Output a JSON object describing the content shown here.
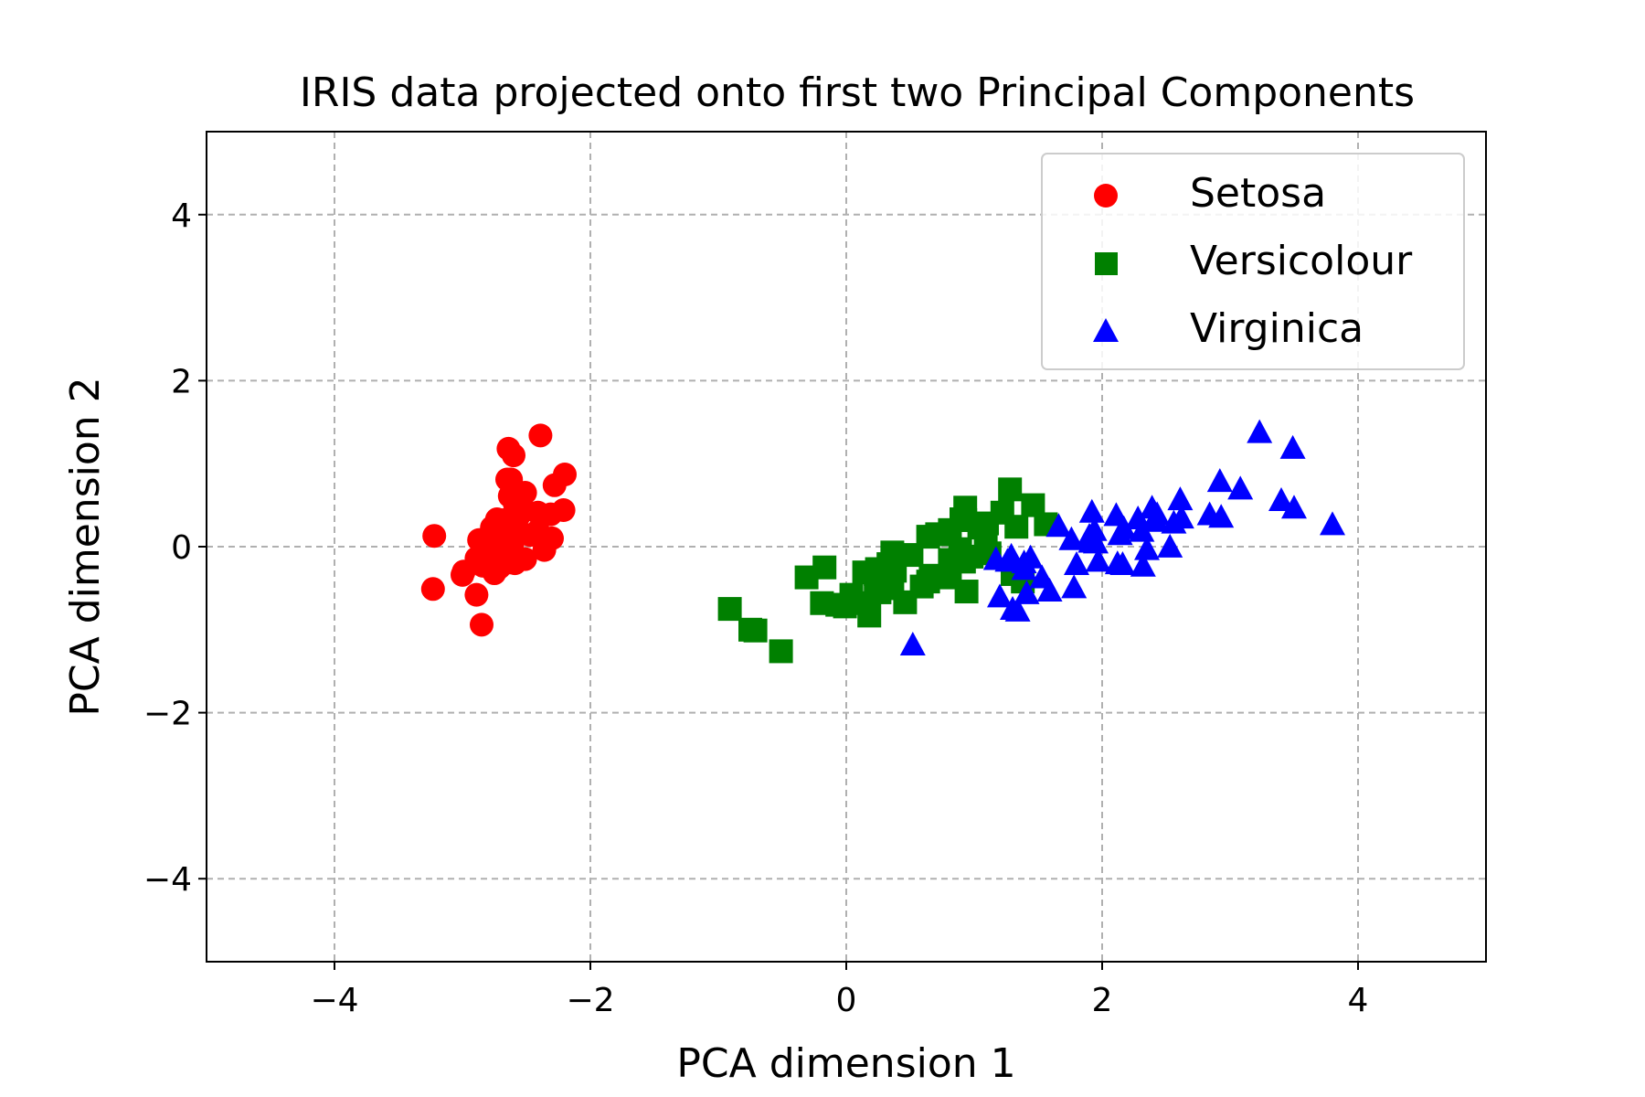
{
  "chart_data": {
    "type": "scatter",
    "title": "IRIS data projected onto first two Principal Components",
    "xlabel": "PCA dimension 1",
    "ylabel": "PCA dimension 2",
    "xlim": [
      -5,
      5
    ],
    "ylim": [
      -5,
      5
    ],
    "xticks": [
      -4,
      -2,
      0,
      2,
      4
    ],
    "yticks": [
      -4,
      -2,
      0,
      2,
      4
    ],
    "xtick_labels": [
      "−4",
      "−2",
      "0",
      "2",
      "4"
    ],
    "ytick_labels": [
      "−4",
      "−2",
      "0",
      "2",
      "4"
    ],
    "grid": true,
    "grid_style": "dashed",
    "legend_position": "top-right",
    "series": [
      {
        "name": "Setosa",
        "color": "#ff0000",
        "marker": "circle",
        "points": [
          [
            -2.68,
            0.32
          ],
          [
            -2.71,
            -0.18
          ],
          [
            -2.89,
            -0.14
          ],
          [
            -2.75,
            -0.32
          ],
          [
            -2.73,
            0.33
          ],
          [
            -2.28,
            0.74
          ],
          [
            -2.82,
            -0.09
          ],
          [
            -2.63,
            0.16
          ],
          [
            -2.89,
            -0.58
          ],
          [
            -2.67,
            -0.11
          ],
          [
            -2.51,
            0.65
          ],
          [
            -2.61,
            0.02
          ],
          [
            -2.79,
            -0.24
          ],
          [
            -3.23,
            -0.51
          ],
          [
            -2.64,
            1.18
          ],
          [
            -2.39,
            1.34
          ],
          [
            -2.62,
            0.81
          ],
          [
            -2.65,
            0.31
          ],
          [
            -2.2,
            0.87
          ],
          [
            -2.59,
            0.51
          ],
          [
            -2.31,
            0.39
          ],
          [
            -2.54,
            0.43
          ],
          [
            -3.22,
            0.13
          ],
          [
            -2.3,
            0.1
          ],
          [
            -2.36,
            -0.04
          ],
          [
            -2.51,
            -0.15
          ],
          [
            -2.47,
            0.14
          ],
          [
            -2.56,
            0.37
          ],
          [
            -2.64,
            0.31
          ],
          [
            -2.63,
            -0.19
          ],
          [
            -2.59,
            -0.2
          ],
          [
            -2.41,
            0.41
          ],
          [
            -2.65,
            0.81
          ],
          [
            -2.6,
            1.1
          ],
          [
            -2.67,
            -0.11
          ],
          [
            -2.87,
            0.08
          ],
          [
            -2.63,
            0.61
          ],
          [
            -2.8,
            0.06
          ],
          [
            -2.99,
            -0.3
          ],
          [
            -2.59,
            0.24
          ],
          [
            -2.77,
            0.23
          ],
          [
            -2.85,
            -0.94
          ],
          [
            -3.0,
            -0.34
          ],
          [
            -2.41,
            0.19
          ],
          [
            -2.21,
            0.44
          ],
          [
            -2.71,
            -0.25
          ],
          [
            -2.54,
            0.5
          ],
          [
            -2.84,
            -0.23
          ],
          [
            -2.54,
            0.58
          ],
          [
            -2.7,
            0.11
          ]
        ]
      },
      {
        "name": "Versicolour",
        "color": "#008000",
        "marker": "square",
        "points": [
          [
            1.28,
            0.69
          ],
          [
            0.93,
            0.32
          ],
          [
            1.46,
            0.5
          ],
          [
            0.18,
            -0.83
          ],
          [
            1.09,
            0.07
          ],
          [
            0.64,
            -0.42
          ],
          [
            1.1,
            0.28
          ],
          [
            -0.75,
            -1.0
          ],
          [
            1.04,
            0.23
          ],
          [
            -0.01,
            -0.72
          ],
          [
            -0.51,
            -1.26
          ],
          [
            0.51,
            -0.1
          ],
          [
            0.26,
            -0.55
          ],
          [
            0.98,
            -0.12
          ],
          [
            -0.17,
            -0.25
          ],
          [
            0.93,
            0.47
          ],
          [
            0.66,
            -0.35
          ],
          [
            0.23,
            -0.33
          ],
          [
            0.94,
            -0.54
          ],
          [
            0.04,
            -0.58
          ],
          [
            1.12,
            -0.08
          ],
          [
            0.36,
            -0.07
          ],
          [
            1.3,
            -0.33
          ],
          [
            0.92,
            -0.18
          ],
          [
            0.71,
            0.15
          ],
          [
            0.9,
            0.33
          ],
          [
            1.33,
            0.24
          ],
          [
            1.56,
            0.27
          ],
          [
            0.81,
            -0.16
          ],
          [
            -0.31,
            -0.37
          ],
          [
            -0.07,
            -0.7
          ],
          [
            -0.19,
            -0.68
          ],
          [
            0.14,
            -0.31
          ],
          [
            1.38,
            -0.42
          ],
          [
            0.59,
            -0.48
          ],
          [
            0.81,
            0.2
          ],
          [
            1.22,
            0.41
          ],
          [
            0.81,
            -0.37
          ],
          [
            0.24,
            -0.27
          ],
          [
            0.16,
            -0.68
          ],
          [
            0.46,
            -0.67
          ],
          [
            0.89,
            -0.03
          ],
          [
            0.23,
            -0.4
          ],
          [
            -0.71,
            -1.01
          ],
          [
            0.36,
            -0.5
          ],
          [
            0.33,
            -0.21
          ],
          [
            0.38,
            -0.29
          ],
          [
            0.64,
            0.12
          ],
          [
            -0.91,
            -0.75
          ],
          [
            0.3,
            -0.35
          ]
        ]
      },
      {
        "name": "Virginica",
        "color": "#0000ff",
        "marker": "triangle",
        "points": [
          [
            2.53,
            -0.01
          ],
          [
            1.41,
            -0.57
          ],
          [
            2.62,
            0.34
          ],
          [
            1.97,
            -0.18
          ],
          [
            2.35,
            -0.04
          ],
          [
            3.4,
            0.55
          ],
          [
            0.52,
            -1.19
          ],
          [
            2.93,
            0.35
          ],
          [
            2.32,
            -0.24
          ],
          [
            2.92,
            0.78
          ],
          [
            1.66,
            0.24
          ],
          [
            1.8,
            -0.22
          ],
          [
            2.17,
            0.21
          ],
          [
            1.34,
            -0.78
          ],
          [
            1.59,
            -0.54
          ],
          [
            1.9,
            0.12
          ],
          [
            1.95,
            0.04
          ],
          [
            3.49,
            1.18
          ],
          [
            3.8,
            0.26
          ],
          [
            1.3,
            -0.76
          ],
          [
            2.43,
            0.38
          ],
          [
            1.2,
            -0.61
          ],
          [
            3.5,
            0.46
          ],
          [
            1.39,
            -0.2
          ],
          [
            2.28,
            0.33
          ],
          [
            2.61,
            0.56
          ],
          [
            1.26,
            -0.18
          ],
          [
            1.29,
            -0.12
          ],
          [
            2.12,
            -0.21
          ],
          [
            2.39,
            0.46
          ],
          [
            2.84,
            0.38
          ],
          [
            3.23,
            1.37
          ],
          [
            2.16,
            -0.22
          ],
          [
            1.44,
            -0.14
          ],
          [
            1.78,
            -0.5
          ],
          [
            3.08,
            0.69
          ],
          [
            2.14,
            0.14
          ],
          [
            1.91,
            0.05
          ],
          [
            1.17,
            -0.16
          ],
          [
            2.11,
            0.37
          ],
          [
            2.31,
            0.18
          ],
          [
            1.92,
            0.41
          ],
          [
            1.41,
            -0.57
          ],
          [
            2.56,
            0.28
          ],
          [
            2.42,
            0.3
          ],
          [
            1.94,
            0.19
          ],
          [
            1.53,
            -0.38
          ],
          [
            1.76,
            0.08
          ],
          [
            1.9,
            0.12
          ],
          [
            1.39,
            -0.28
          ]
        ]
      }
    ]
  }
}
